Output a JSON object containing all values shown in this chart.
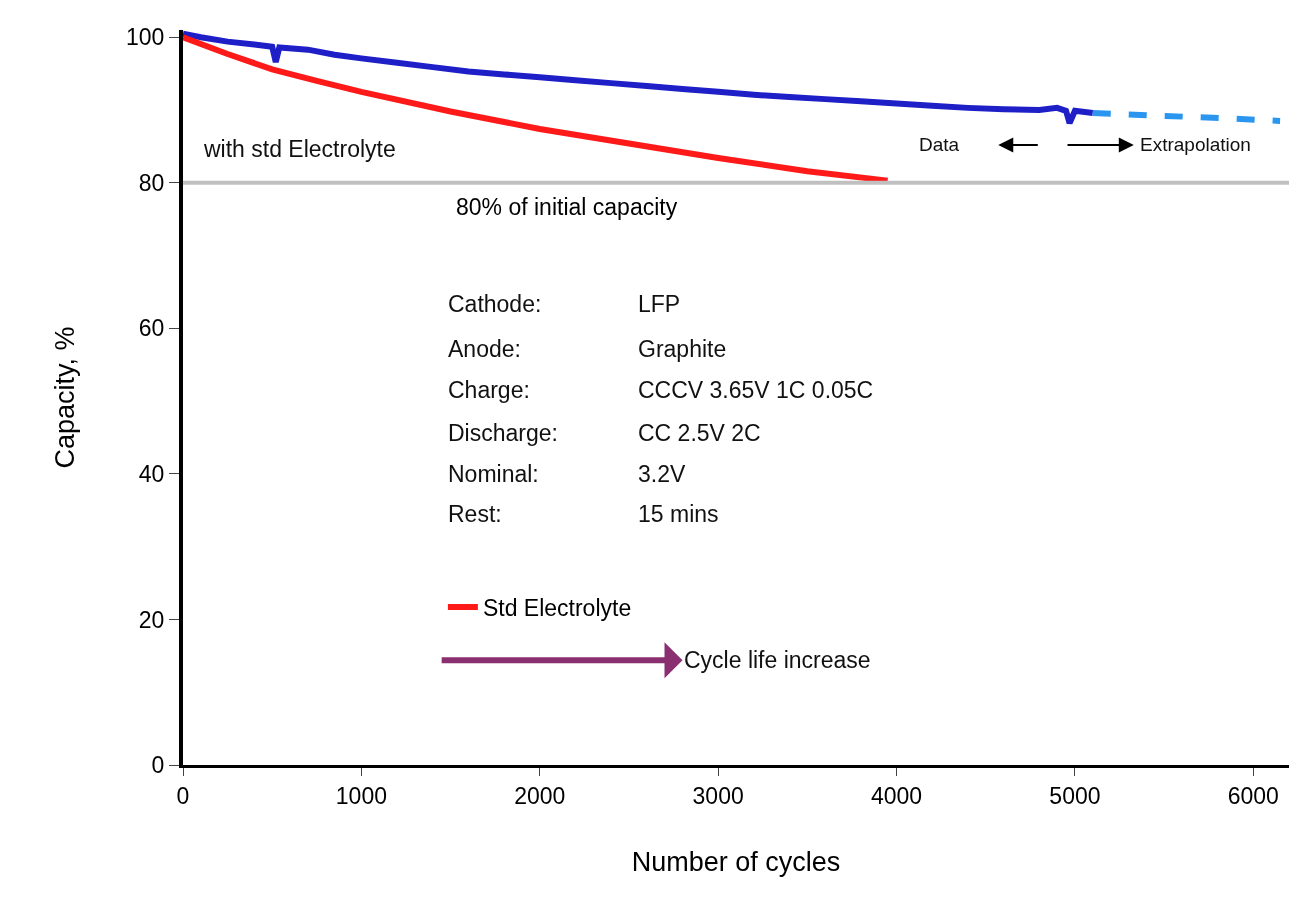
{
  "chart_data": {
    "type": "line",
    "xlabel": "Number of cycles",
    "ylabel": "Capacity, %",
    "xlim": [
      0,
      6200
    ],
    "xticks": [
      0,
      1000,
      2000,
      3000,
      4000,
      5000,
      6000
    ],
    "ylim": [
      0,
      101
    ],
    "yticks": [
      0,
      20,
      40,
      60,
      80,
      100
    ],
    "grid": false,
    "legend": "bottom",
    "marker": "none",
    "series": [
      {
        "color": "#1f1fc8",
        "line_style": "solid",
        "x": [
          0,
          100,
          250,
          400,
          500,
          520,
          540,
          700,
          850,
          1000,
          1200,
          1400,
          1600,
          1800,
          2000,
          2200,
          2400,
          2600,
          2800,
          3000,
          3200,
          3400,
          3600,
          3800,
          4000,
          4200,
          4400,
          4600,
          4800,
          4900,
          4950,
          4970,
          5000,
          5100
        ],
        "values": [
          100.5,
          100.0,
          99.4,
          99.0,
          98.7,
          96.6,
          98.6,
          98.3,
          97.6,
          97.1,
          96.5,
          95.9,
          95.3,
          94.9,
          94.5,
          94.1,
          93.7,
          93.3,
          92.9,
          92.5,
          92.1,
          91.8,
          91.5,
          91.2,
          90.9,
          90.6,
          90.3,
          90.1,
          90.0,
          90.3,
          89.9,
          88.2,
          89.9,
          89.6
        ]
      },
      {
        "color": "#2a96f0",
        "line_style": "dashed",
        "x": [
          5100,
          5500,
          5900,
          6150
        ],
        "values": [
          89.6,
          89.2,
          88.8,
          88.5
        ]
      },
      {
        "name": "Std Electrolyte",
        "color": "#ff1a1a",
        "line_style": "solid",
        "x": [
          0,
          250,
          500,
          750,
          1000,
          1500,
          2000,
          2500,
          3000,
          3500,
          3950
        ],
        "values": [
          100,
          97.7,
          95.6,
          94.0,
          92.5,
          89.8,
          87.4,
          85.4,
          83.4,
          81.6,
          80.3
        ]
      }
    ],
    "ref_lines": [
      {
        "axis": "y",
        "value": 80,
        "label": "80% of initial capacity",
        "color": "#c0c0c0"
      }
    ],
    "annotations": [
      "with std Electrolyte",
      "Data",
      "Extrapolation",
      "Cathode:",
      "Anode:",
      "Charge:",
      "Discharge:",
      "Nominal:",
      "Rest:",
      "LFP",
      "Graphite",
      "CCCV 3.65V 1C 0.05C",
      "CC 2.5V 2C",
      "3.2V",
      "15 mins",
      "Cycle life increase"
    ]
  }
}
